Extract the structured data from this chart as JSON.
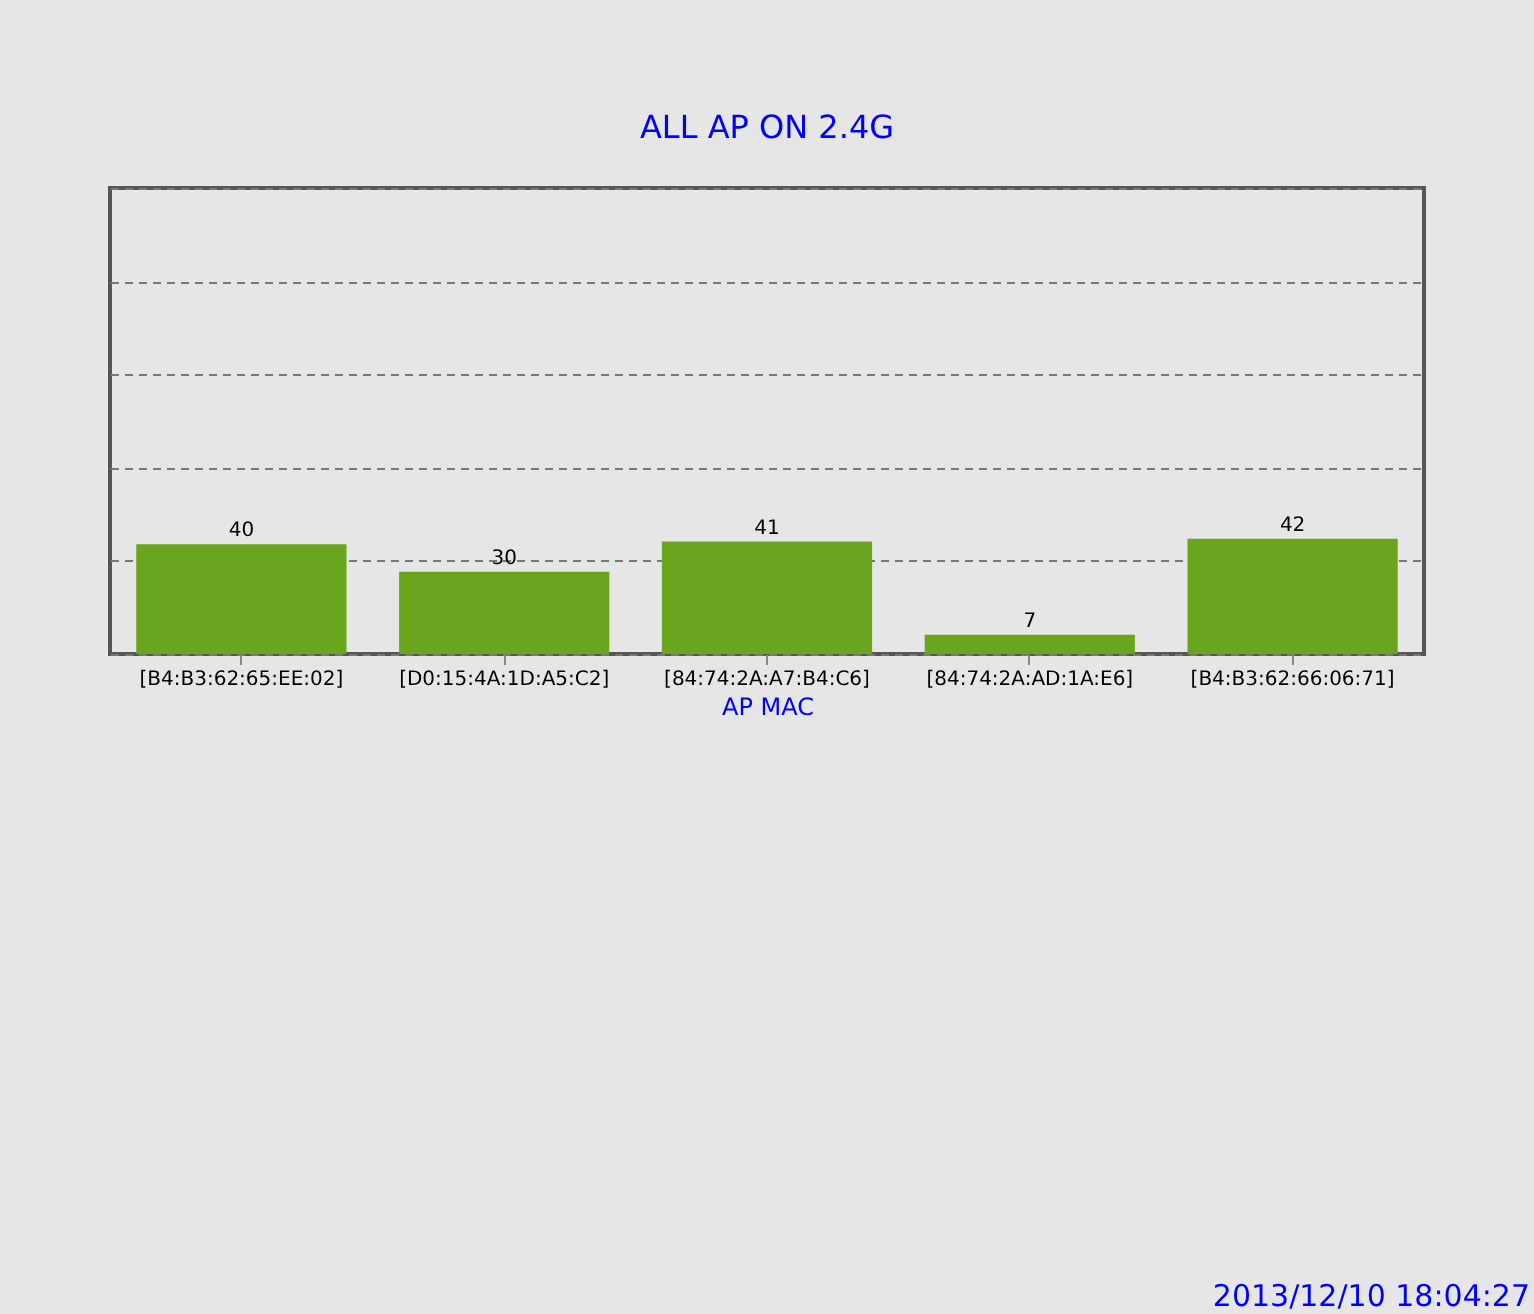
{
  "chart_data": {
    "type": "bar",
    "title": "ALL AP ON 2.4G",
    "xlabel": "AP MAC",
    "categories": [
      "[B4:B3:62:65:EE:02]",
      "[D0:15:4A:1D:A5:C2]",
      "[84:74:2A:A7:B4:C6]",
      "[84:74:2A:AD:1A:E6]",
      "[B4:B3:62:66:06:71]"
    ],
    "values": [
      40,
      30,
      41,
      7,
      42
    ],
    "color": "#6aa51e",
    "data_labels": true,
    "ylim": [
      0,
      170
    ],
    "yticks": [
      {
        "value": 0,
        "label": null
      },
      {
        "value": 34,
        "label": null
      },
      {
        "value": 68,
        "label": null
      },
      {
        "value": 102,
        "label": null
      },
      {
        "value": 136,
        "label": null
      },
      {
        "value": 170,
        "label": null
      }
    ],
    "grid": "y",
    "tick_labels": "x",
    "line_style": "dashed",
    "annotations": [
      "2013/12/10 18:04:27"
    ]
  }
}
